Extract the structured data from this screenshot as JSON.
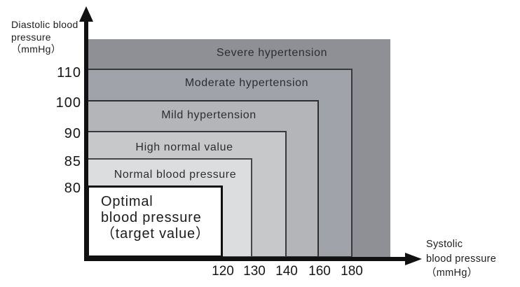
{
  "axes": {
    "y_title_lines": [
      "Diastolic blood",
      "pressure",
      "（mmHg）"
    ],
    "x_title_lines": [
      "Systolic",
      "blood pressure",
      "（mmHg）"
    ]
  },
  "chart_data": {
    "type": "area",
    "variant": "nested-rectangle-classification",
    "title": "",
    "xlabel": "Systolic blood pressure（mmHg）",
    "ylabel": "Diastolic blood pressure（mmHg）",
    "x_ticks": [
      "120",
      "130",
      "140",
      "160",
      "180"
    ],
    "y_ticks": [
      "110",
      "100",
      "90",
      "85",
      "80"
    ],
    "legend": "none",
    "zones": [
      {
        "label": "Severe hypertension",
        "systolic_upper": null,
        "diastolic_upper": null,
        "fill": "#8e9095"
      },
      {
        "label": "Moderate hypertension",
        "systolic_upper": 180,
        "diastolic_upper": 110,
        "fill": "#a0a3a9"
      },
      {
        "label": "Mild hypertension",
        "systolic_upper": 160,
        "diastolic_upper": 100,
        "fill": "#b3b5b9"
      },
      {
        "label": "High normal value",
        "systolic_upper": 140,
        "diastolic_upper": 90,
        "fill": "#c7c8ca"
      },
      {
        "label": "Normal blood pressure",
        "systolic_upper": 130,
        "diastolic_upper": 85,
        "fill": "#dcddde"
      },
      {
        "label": "Optimal blood pressure（target value）",
        "label_lines": [
          "Optimal",
          "blood pressure",
          "（target value）"
        ],
        "systolic_upper": 120,
        "diastolic_upper": 80,
        "fill": "#ffffff"
      }
    ]
  }
}
